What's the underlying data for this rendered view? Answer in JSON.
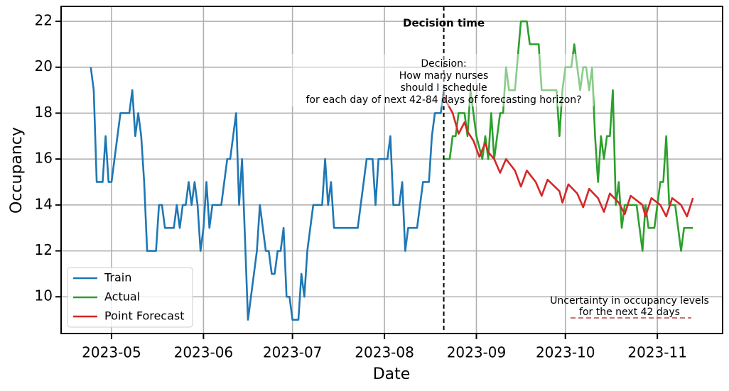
{
  "chart_data": {
    "type": "line",
    "xlabel": "Date",
    "ylabel": "Occupancy",
    "xlim": [
      "2023-04-14",
      "2023-11-23"
    ],
    "ylim": [
      8.4,
      22.65
    ],
    "xticks": [
      {
        "value": "2023-05-01",
        "label": "2023-05"
      },
      {
        "value": "2023-06-01",
        "label": "2023-06"
      },
      {
        "value": "2023-07-01",
        "label": "2023-07"
      },
      {
        "value": "2023-08-01",
        "label": "2023-08"
      },
      {
        "value": "2023-09-01",
        "label": "2023-09"
      },
      {
        "value": "2023-10-01",
        "label": "2023-10"
      },
      {
        "value": "2023-11-01",
        "label": "2023-11"
      }
    ],
    "yticks": [
      10,
      12,
      14,
      16,
      18,
      20,
      22
    ],
    "grid": true,
    "legend_loc": "lower left",
    "decision_date": "2023-08-21",
    "decision_label": "Decision time",
    "decision_note": [
      "Decision:",
      "How many nurses",
      "should I schedule",
      "for each day of next 42-84 days of forecasting horizon?"
    ],
    "uncertainty_note": [
      "Uncertainty in occupancy levels",
      "for the next 42 days"
    ],
    "series": [
      {
        "name": "Train",
        "color": "#1f77b4",
        "x": [
          "2023-04-24",
          "2023-04-25",
          "2023-04-26",
          "2023-04-28",
          "2023-04-29",
          "2023-04-30",
          "2023-05-01",
          "2023-05-04",
          "2023-05-07",
          "2023-05-08",
          "2023-05-09",
          "2023-05-10",
          "2023-05-11",
          "2023-05-12",
          "2023-05-13",
          "2023-05-16",
          "2023-05-17",
          "2023-05-18",
          "2023-05-19",
          "2023-05-22",
          "2023-05-23",
          "2023-05-24",
          "2023-05-25",
          "2023-05-26",
          "2023-05-27",
          "2023-05-28",
          "2023-05-29",
          "2023-05-30",
          "2023-05-31",
          "2023-06-01",
          "2023-06-02",
          "2023-06-03",
          "2023-06-04",
          "2023-06-07",
          "2023-06-09",
          "2023-06-10",
          "2023-06-12",
          "2023-06-13",
          "2023-06-14",
          "2023-06-16",
          "2023-06-19",
          "2023-06-20",
          "2023-06-22",
          "2023-06-23",
          "2023-06-24",
          "2023-06-25",
          "2023-06-26",
          "2023-06-27",
          "2023-06-28",
          "2023-06-29",
          "2023-06-30",
          "2023-07-01",
          "2023-07-03",
          "2023-07-04",
          "2023-07-05",
          "2023-07-06",
          "2023-07-08",
          "2023-07-11",
          "2023-07-12",
          "2023-07-13",
          "2023-07-14",
          "2023-07-15",
          "2023-07-23",
          "2023-07-26",
          "2023-07-28",
          "2023-07-29",
          "2023-07-30",
          "2023-08-02",
          "2023-08-03",
          "2023-08-04",
          "2023-08-06",
          "2023-08-07",
          "2023-08-08",
          "2023-08-09",
          "2023-08-12",
          "2023-08-14",
          "2023-08-16",
          "2023-08-17",
          "2023-08-18",
          "2023-08-20",
          "2023-08-21"
        ],
        "values": [
          20,
          19,
          15,
          15,
          17,
          15,
          15,
          18,
          18,
          19,
          17,
          18,
          17,
          15,
          12,
          12,
          14,
          14,
          13,
          13,
          14,
          13,
          14,
          14,
          15,
          14,
          15,
          14,
          12,
          13,
          15,
          13,
          14,
          14,
          16,
          16,
          18,
          14,
          16,
          9,
          12,
          14,
          12,
          12,
          11,
          11,
          12,
          12,
          13,
          10,
          10,
          9,
          9,
          11,
          10,
          12,
          14,
          14,
          16,
          14,
          15,
          13,
          13,
          16,
          16,
          14,
          16,
          16,
          17,
          14,
          14,
          15,
          12,
          13,
          13,
          15,
          15,
          17,
          18,
          18,
          19
        ]
      },
      {
        "name": "Actual",
        "color": "#2ca02c",
        "x": [
          "2023-08-21",
          "2023-08-23",
          "2023-08-24",
          "2023-08-25",
          "2023-08-26",
          "2023-08-28",
          "2023-08-29",
          "2023-08-30",
          "2023-08-31",
          "2023-09-01",
          "2023-09-03",
          "2023-09-04",
          "2023-09-05",
          "2023-09-06",
          "2023-09-07",
          "2023-09-09",
          "2023-09-10",
          "2023-09-11",
          "2023-09-12",
          "2023-09-14",
          "2023-09-16",
          "2023-09-18",
          "2023-09-19",
          "2023-09-22",
          "2023-09-23",
          "2023-09-28",
          "2023-09-29",
          "2023-09-30",
          "2023-10-01",
          "2023-10-03",
          "2023-10-04",
          "2023-10-05",
          "2023-10-06",
          "2023-10-07",
          "2023-10-08",
          "2023-10-09",
          "2023-10-10",
          "2023-10-11",
          "2023-10-12",
          "2023-10-13",
          "2023-10-14",
          "2023-10-15",
          "2023-10-16",
          "2023-10-17",
          "2023-10-18",
          "2023-10-19",
          "2023-10-20",
          "2023-10-21",
          "2023-10-25",
          "2023-10-27",
          "2023-10-28",
          "2023-10-29",
          "2023-10-31",
          "2023-11-02",
          "2023-11-03",
          "2023-11-04",
          "2023-11-05",
          "2023-11-07",
          "2023-11-09",
          "2023-11-10",
          "2023-11-13"
        ],
        "values": [
          16,
          16,
          17,
          17,
          18,
          18,
          17,
          19,
          18,
          17,
          16,
          17,
          16,
          18,
          16,
          18,
          18,
          20,
          19,
          19,
          22,
          22,
          21,
          21,
          19,
          19,
          17,
          19,
          20,
          20,
          21,
          20,
          19,
          20,
          20,
          19,
          20,
          17,
          15,
          17,
          16,
          17,
          17,
          19,
          14,
          15,
          13,
          14,
          14,
          12,
          14,
          13,
          13,
          15,
          15,
          17,
          14,
          14,
          12,
          13,
          13
        ]
      },
      {
        "name": "Point Forecast",
        "color": "#d62728",
        "x": [
          "2023-08-21",
          "2023-08-24",
          "2023-08-26",
          "2023-08-28",
          "2023-08-29",
          "2023-08-31",
          "2023-09-02",
          "2023-09-04",
          "2023-09-05",
          "2023-09-07",
          "2023-09-09",
          "2023-09-11",
          "2023-09-14",
          "2023-09-16",
          "2023-09-18",
          "2023-09-21",
          "2023-09-23",
          "2023-09-25",
          "2023-09-29",
          "2023-09-30",
          "2023-10-02",
          "2023-10-05",
          "2023-10-07",
          "2023-10-09",
          "2023-10-12",
          "2023-10-14",
          "2023-10-16",
          "2023-10-19",
          "2023-10-21",
          "2023-10-23",
          "2023-10-27",
          "2023-10-28",
          "2023-10-30",
          "2023-11-02",
          "2023-11-04",
          "2023-11-06",
          "2023-11-09",
          "2023-11-11",
          "2023-11-13"
        ],
        "values": [
          18.7,
          18.0,
          17.1,
          17.6,
          17.2,
          16.8,
          16.1,
          16.7,
          16.3,
          16.0,
          15.4,
          16.0,
          15.5,
          14.8,
          15.5,
          15.0,
          14.4,
          15.1,
          14.6,
          14.1,
          14.9,
          14.5,
          13.9,
          14.7,
          14.3,
          13.7,
          14.5,
          14.1,
          13.6,
          14.4,
          14.0,
          13.5,
          14.3,
          14.0,
          13.5,
          14.3,
          14.0,
          13.5,
          14.3
        ]
      }
    ]
  }
}
